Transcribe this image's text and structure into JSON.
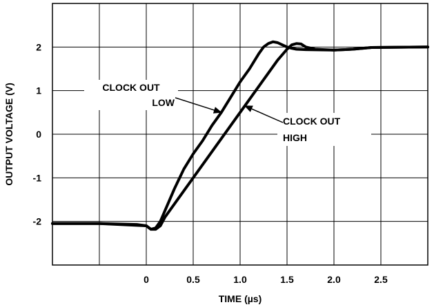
{
  "chart_data": {
    "type": "line",
    "title": "",
    "xlabel": "TIME (µs)",
    "ylabel": "OUTPUT VOLTAGE (V)",
    "xlim": [
      -1.0,
      3.0
    ],
    "ylim": [
      -3.0,
      3.0
    ],
    "grid": true,
    "legend": "none",
    "x_ticks": [
      0,
      0.5,
      1.0,
      1.5,
      2.0,
      2.5
    ],
    "x_tick_labels": [
      "0",
      "0.5",
      "1.0",
      "1.5",
      "2.0",
      "2.5"
    ],
    "y_ticks": [
      2,
      1,
      0,
      -1,
      -2
    ],
    "y_tick_labels": [
      "2",
      "1",
      "0",
      "-1",
      "-2"
    ],
    "series": [
      {
        "key": "clock-out-low",
        "x": [
          -1.0,
          -0.5,
          -0.1,
          0.0,
          0.05,
          0.1,
          0.15,
          0.2,
          0.3,
          0.4,
          0.5,
          0.6,
          0.7,
          0.8,
          0.9,
          1.0,
          1.1,
          1.2,
          1.25,
          1.3,
          1.35,
          1.4,
          1.45,
          1.5,
          1.55,
          1.6,
          1.7,
          2.0,
          2.2,
          2.4,
          3.0
        ],
        "y": [
          -2.05,
          -2.05,
          -2.07,
          -2.1,
          -2.18,
          -2.15,
          -2.0,
          -1.75,
          -1.25,
          -0.8,
          -0.45,
          -0.15,
          0.2,
          0.5,
          0.85,
          1.2,
          1.5,
          1.85,
          2.0,
          2.08,
          2.12,
          2.1,
          2.05,
          2.0,
          1.97,
          1.95,
          1.94,
          1.93,
          1.95,
          1.99,
          2.0
        ]
      },
      {
        "key": "clock-out-high",
        "x": [
          -1.0,
          -0.5,
          0.0,
          0.05,
          0.1,
          0.15,
          0.2,
          0.3,
          0.4,
          0.5,
          0.6,
          0.7,
          0.8,
          0.9,
          1.0,
          1.1,
          1.2,
          1.3,
          1.4,
          1.5,
          1.55,
          1.6,
          1.65,
          1.7,
          1.8,
          2.0,
          2.2,
          2.4,
          3.0
        ],
        "y": [
          -2.05,
          -2.05,
          -2.1,
          -2.18,
          -2.18,
          -2.1,
          -1.9,
          -1.6,
          -1.3,
          -1.0,
          -0.7,
          -0.4,
          -0.1,
          0.2,
          0.5,
          0.8,
          1.1,
          1.4,
          1.7,
          1.95,
          2.05,
          2.08,
          2.07,
          2.0,
          1.95,
          1.93,
          1.95,
          1.99,
          2.0
        ]
      }
    ],
    "annotations": [
      {
        "key": "annotation-clock-out-low",
        "lines": [
          "CLOCK OUT",
          "LOW"
        ],
        "points_to_series": "clock-out-low",
        "arrow_target": [
          0.8,
          0.5
        ]
      },
      {
        "key": "annotation-clock-out-high",
        "lines": [
          "CLOCK OUT",
          "HIGH"
        ],
        "points_to_series": "clock-out-high",
        "arrow_target": [
          1.05,
          0.65
        ]
      }
    ]
  }
}
